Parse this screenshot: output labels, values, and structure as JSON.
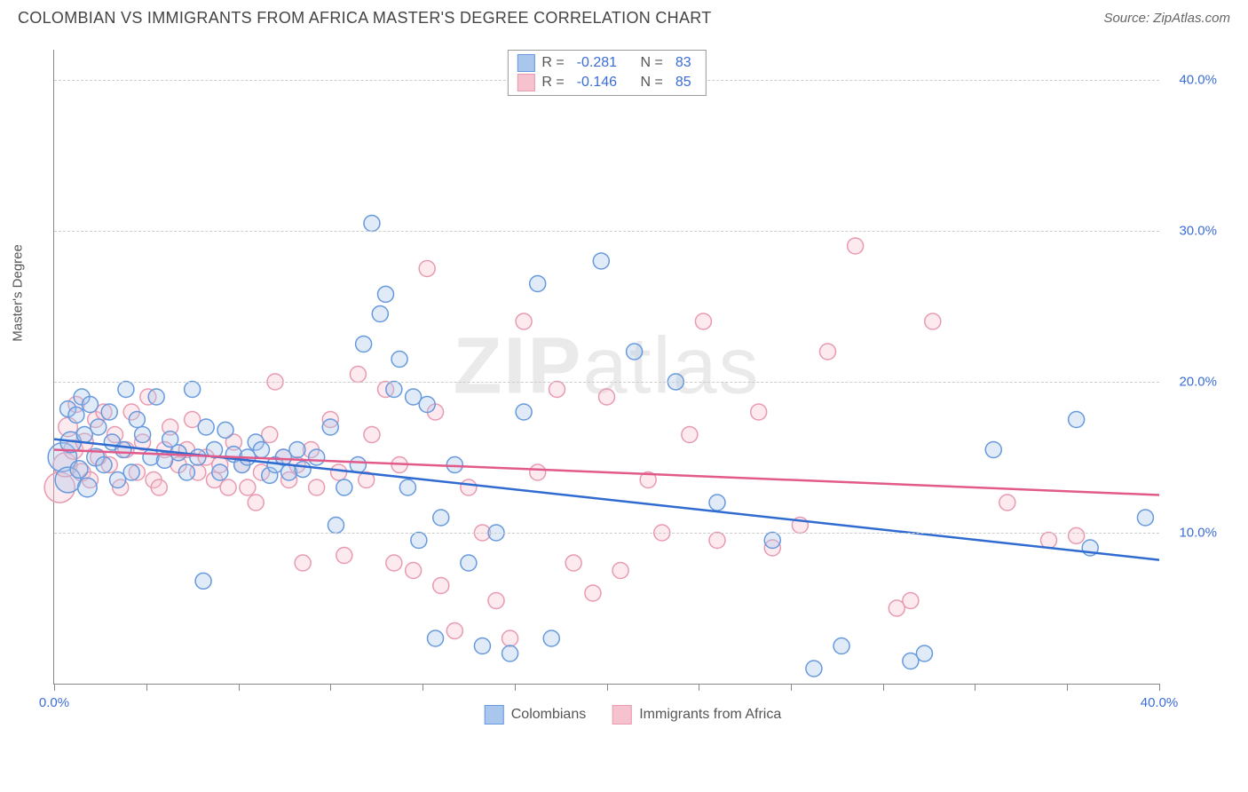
{
  "title": "COLOMBIAN VS IMMIGRANTS FROM AFRICA MASTER'S DEGREE CORRELATION CHART",
  "source": "Source: ZipAtlas.com",
  "watermark_bold": "ZIP",
  "watermark_rest": "atlas",
  "chart": {
    "type": "scatter",
    "y_axis_label": "Master's Degree",
    "xlim": [
      0,
      40
    ],
    "ylim": [
      0,
      42
    ],
    "x_ticks": [
      0,
      3.33,
      6.67,
      10,
      13.33,
      16.67,
      20,
      23.33,
      26.67,
      30,
      33.33,
      36.67,
      40
    ],
    "x_tick_labels": {
      "0": "0.0%",
      "40": "40.0%"
    },
    "y_gridlines": [
      10,
      20,
      30,
      40
    ],
    "y_tick_labels": {
      "10": "10.0%",
      "20": "20.0%",
      "30": "30.0%",
      "40": "40.0%"
    },
    "background_color": "#ffffff",
    "grid_color": "#cccccc",
    "axis_color": "#888888",
    "tick_label_color": "#3b6dd6",
    "marker_base_radius": 9,
    "marker_stroke_width": 1.5,
    "marker_fill_opacity": 0.35,
    "line_width": 2.5,
    "series": [
      {
        "name": "Colombians",
        "fill_color": "#a9c7ec",
        "stroke_color": "#6699dd",
        "line_color": "#2f6bd0",
        "r_value": "-0.281",
        "n_value": "83",
        "regression": {
          "x1": 0,
          "y1": 16.2,
          "x2": 40,
          "y2": 8.2
        },
        "points": [
          [
            0.3,
            15.0,
            1.8
          ],
          [
            0.5,
            13.5,
            1.6
          ],
          [
            0.5,
            18.2,
            1.0
          ],
          [
            0.6,
            16.0,
            1.3
          ],
          [
            0.8,
            17.8,
            1.0
          ],
          [
            0.9,
            14.2,
            1.1
          ],
          [
            1.0,
            19.0,
            1.0
          ],
          [
            1.1,
            16.5,
            1.0
          ],
          [
            1.2,
            13.0,
            1.2
          ],
          [
            1.3,
            18.5,
            1.0
          ],
          [
            1.5,
            15.0,
            1.1
          ],
          [
            1.6,
            17.0,
            1.0
          ],
          [
            1.8,
            14.5,
            1.0
          ],
          [
            2.0,
            18.0,
            1.0
          ],
          [
            2.1,
            16.0,
            1.0
          ],
          [
            2.3,
            13.5,
            1.0
          ],
          [
            2.5,
            15.5,
            1.0
          ],
          [
            2.6,
            19.5,
            1.0
          ],
          [
            2.8,
            14.0,
            1.0
          ],
          [
            3.0,
            17.5,
            1.0
          ],
          [
            3.2,
            16.5,
            1.0
          ],
          [
            3.5,
            15.0,
            1.0
          ],
          [
            3.7,
            19.0,
            1.0
          ],
          [
            4.0,
            14.8,
            1.0
          ],
          [
            4.2,
            16.2,
            1.0
          ],
          [
            4.5,
            15.3,
            1.0
          ],
          [
            4.8,
            14.0,
            1.0
          ],
          [
            5.0,
            19.5,
            1.0
          ],
          [
            5.2,
            15.0,
            1.0
          ],
          [
            5.4,
            6.8,
            1.0
          ],
          [
            5.5,
            17.0,
            1.0
          ],
          [
            5.8,
            15.5,
            1.0
          ],
          [
            6.0,
            14.0,
            1.0
          ],
          [
            6.2,
            16.8,
            1.0
          ],
          [
            6.5,
            15.2,
            1.0
          ],
          [
            6.8,
            14.5,
            1.0
          ],
          [
            7.0,
            15.0,
            1.0
          ],
          [
            7.3,
            16.0,
            1.0
          ],
          [
            7.5,
            15.5,
            1.0
          ],
          [
            7.8,
            13.8,
            1.0
          ],
          [
            8.0,
            14.5,
            1.0
          ],
          [
            8.3,
            15.0,
            1.0
          ],
          [
            8.5,
            14.0,
            1.0
          ],
          [
            8.8,
            15.5,
            1.0
          ],
          [
            9.0,
            14.2,
            1.0
          ],
          [
            9.5,
            15.0,
            1.0
          ],
          [
            10.0,
            17.0,
            1.0
          ],
          [
            10.2,
            10.5,
            1.0
          ],
          [
            10.5,
            13.0,
            1.0
          ],
          [
            11.0,
            14.5,
            1.0
          ],
          [
            11.2,
            22.5,
            1.0
          ],
          [
            11.5,
            30.5,
            1.0
          ],
          [
            11.8,
            24.5,
            1.0
          ],
          [
            12.0,
            25.8,
            1.0
          ],
          [
            12.3,
            19.5,
            1.0
          ],
          [
            12.5,
            21.5,
            1.0
          ],
          [
            12.8,
            13.0,
            1.0
          ],
          [
            13.0,
            19.0,
            1.0
          ],
          [
            13.2,
            9.5,
            1.0
          ],
          [
            13.5,
            18.5,
            1.0
          ],
          [
            13.8,
            3.0,
            1.0
          ],
          [
            14.0,
            11.0,
            1.0
          ],
          [
            14.5,
            14.5,
            1.0
          ],
          [
            15.0,
            8.0,
            1.0
          ],
          [
            15.5,
            2.5,
            1.0
          ],
          [
            16.0,
            10.0,
            1.0
          ],
          [
            16.5,
            2.0,
            1.0
          ],
          [
            17.0,
            18.0,
            1.0
          ],
          [
            17.5,
            26.5,
            1.0
          ],
          [
            18.0,
            3.0,
            1.0
          ],
          [
            19.8,
            28.0,
            1.0
          ],
          [
            21.0,
            22.0,
            1.0
          ],
          [
            22.5,
            20.0,
            1.0
          ],
          [
            24.0,
            12.0,
            1.0
          ],
          [
            26.0,
            9.5,
            1.0
          ],
          [
            27.5,
            1.0,
            1.0
          ],
          [
            28.5,
            2.5,
            1.0
          ],
          [
            31.0,
            1.5,
            1.0
          ],
          [
            31.5,
            2.0,
            1.0
          ],
          [
            34.0,
            15.5,
            1.0
          ],
          [
            37.0,
            17.5,
            1.0
          ],
          [
            37.5,
            9.0,
            1.0
          ],
          [
            39.5,
            11.0,
            1.0
          ]
        ]
      },
      {
        "name": "Immigrants from Africa",
        "fill_color": "#f5c2cd",
        "stroke_color": "#e89ab0",
        "line_color": "#e15a8a",
        "r_value": "-0.146",
        "n_value": "85",
        "regression": {
          "x1": 0,
          "y1": 15.5,
          "x2": 40,
          "y2": 12.5
        },
        "points": [
          [
            0.2,
            13.0,
            1.9
          ],
          [
            0.4,
            14.5,
            1.5
          ],
          [
            0.5,
            17.0,
            1.2
          ],
          [
            0.7,
            15.5,
            1.2
          ],
          [
            0.8,
            18.5,
            1.0
          ],
          [
            1.0,
            14.0,
            1.1
          ],
          [
            1.1,
            16.0,
            1.1
          ],
          [
            1.3,
            13.5,
            1.0
          ],
          [
            1.5,
            17.5,
            1.0
          ],
          [
            1.6,
            15.0,
            1.0
          ],
          [
            1.8,
            18.0,
            1.0
          ],
          [
            2.0,
            14.5,
            1.0
          ],
          [
            2.2,
            16.5,
            1.0
          ],
          [
            2.4,
            13.0,
            1.0
          ],
          [
            2.6,
            15.5,
            1.0
          ],
          [
            2.8,
            18.0,
            1.0
          ],
          [
            3.0,
            14.0,
            1.0
          ],
          [
            3.2,
            16.0,
            1.0
          ],
          [
            3.4,
            19.0,
            1.0
          ],
          [
            3.6,
            13.5,
            1.0
          ],
          [
            3.8,
            13.0,
            1.0
          ],
          [
            4.0,
            15.5,
            1.0
          ],
          [
            4.2,
            17.0,
            1.0
          ],
          [
            4.5,
            14.5,
            1.0
          ],
          [
            4.8,
            15.5,
            1.0
          ],
          [
            5.0,
            17.5,
            1.0
          ],
          [
            5.2,
            14.0,
            1.0
          ],
          [
            5.5,
            15.0,
            1.0
          ],
          [
            5.8,
            13.5,
            1.0
          ],
          [
            6.0,
            14.5,
            1.0
          ],
          [
            6.3,
            13.0,
            1.0
          ],
          [
            6.5,
            16.0,
            1.0
          ],
          [
            6.8,
            14.5,
            1.0
          ],
          [
            7.0,
            13.0,
            1.0
          ],
          [
            7.3,
            12.0,
            1.0
          ],
          [
            7.5,
            14.0,
            1.0
          ],
          [
            7.8,
            16.5,
            1.0
          ],
          [
            8.0,
            20.0,
            1.0
          ],
          [
            8.3,
            15.0,
            1.0
          ],
          [
            8.5,
            13.5,
            1.0
          ],
          [
            8.8,
            14.5,
            1.0
          ],
          [
            9.0,
            8.0,
            1.0
          ],
          [
            9.3,
            15.5,
            1.0
          ],
          [
            9.5,
            13.0,
            1.0
          ],
          [
            10.0,
            17.5,
            1.0
          ],
          [
            10.3,
            14.0,
            1.0
          ],
          [
            10.5,
            8.5,
            1.0
          ],
          [
            11.0,
            20.5,
            1.0
          ],
          [
            11.3,
            13.5,
            1.0
          ],
          [
            11.5,
            16.5,
            1.0
          ],
          [
            12.0,
            19.5,
            1.0
          ],
          [
            12.3,
            8.0,
            1.0
          ],
          [
            12.5,
            14.5,
            1.0
          ],
          [
            13.0,
            7.5,
            1.0
          ],
          [
            13.5,
            27.5,
            1.0
          ],
          [
            13.8,
            18.0,
            1.0
          ],
          [
            14.0,
            6.5,
            1.0
          ],
          [
            14.5,
            3.5,
            1.0
          ],
          [
            15.0,
            13.0,
            1.0
          ],
          [
            15.5,
            10.0,
            1.0
          ],
          [
            16.0,
            5.5,
            1.0
          ],
          [
            16.5,
            3.0,
            1.0
          ],
          [
            17.0,
            24.0,
            1.0
          ],
          [
            17.5,
            14.0,
            1.0
          ],
          [
            18.2,
            19.5,
            1.0
          ],
          [
            18.8,
            8.0,
            1.0
          ],
          [
            19.5,
            6.0,
            1.0
          ],
          [
            20.0,
            19.0,
            1.0
          ],
          [
            20.5,
            7.5,
            1.0
          ],
          [
            21.5,
            13.5,
            1.0
          ],
          [
            22.0,
            10.0,
            1.0
          ],
          [
            23.0,
            16.5,
            1.0
          ],
          [
            23.5,
            24.0,
            1.0
          ],
          [
            24.0,
            9.5,
            1.0
          ],
          [
            25.5,
            18.0,
            1.0
          ],
          [
            26.0,
            9.0,
            1.0
          ],
          [
            27.0,
            10.5,
            1.0
          ],
          [
            28.0,
            22.0,
            1.0
          ],
          [
            29.0,
            29.0,
            1.0
          ],
          [
            30.5,
            5.0,
            1.0
          ],
          [
            31.0,
            5.5,
            1.0
          ],
          [
            31.8,
            24.0,
            1.0
          ],
          [
            34.5,
            12.0,
            1.0
          ],
          [
            36.0,
            9.5,
            1.0
          ],
          [
            37.0,
            9.8,
            1.0
          ]
        ]
      }
    ]
  },
  "legend_top": {
    "r_label": "R =",
    "n_label": "N ="
  },
  "legend_bottom_label_1": "Colombians",
  "legend_bottom_label_2": "Immigrants from Africa"
}
